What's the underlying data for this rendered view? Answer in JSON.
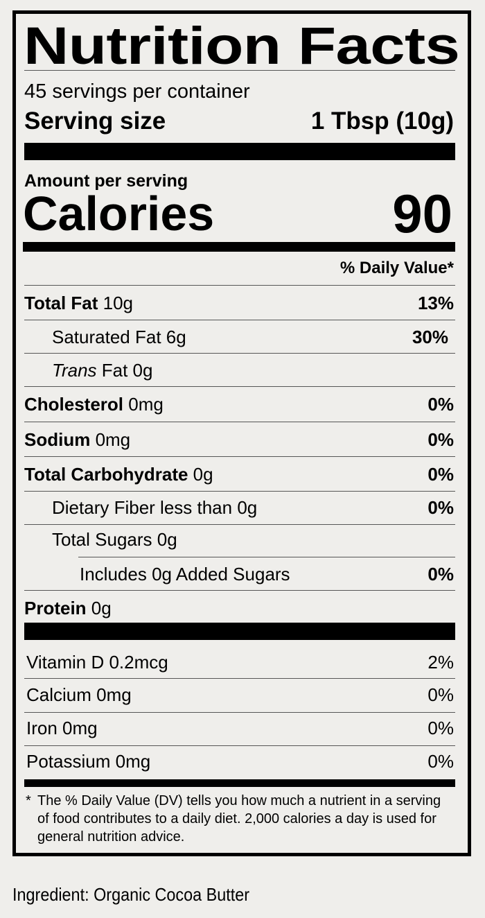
{
  "title": "Nutrition Facts",
  "servings": "45 servings per container",
  "serving_size_label": "Serving size",
  "serving_size_value": "1 Tbsp (10g)",
  "amount_per_serving": "Amount per serving",
  "calories_label": "Calories",
  "calories_value": "90",
  "dv_header": "% Daily Value*",
  "nutrients": [
    {
      "name": "Total Fat",
      "amount": " 10g",
      "dv": "13%"
    },
    {
      "name": "Saturated Fat 6g",
      "dv": "30%"
    },
    {
      "name_italic": "Trans",
      "name": " Fat 0g",
      "dv": ""
    },
    {
      "name": "Cholesterol",
      "amount": " 0mg",
      "dv": "0%"
    },
    {
      "name": "Sodium",
      "amount": " 0mg",
      "dv": "0%"
    },
    {
      "name": "Total Carbohydrate",
      "amount": " 0g",
      "dv": "0%"
    },
    {
      "name": "Dietary Fiber less than 0g",
      "dv": "0%"
    },
    {
      "name": "Total Sugars 0g",
      "dv": ""
    },
    {
      "name": "Includes 0g Added Sugars",
      "dv": "0%"
    },
    {
      "name": "Protein",
      "amount": " 0g",
      "dv": ""
    }
  ],
  "vitamins": [
    {
      "name": "Vitamin D 0.2mcg",
      "dv": "2%"
    },
    {
      "name": "Calcium 0mg",
      "dv": "0%"
    },
    {
      "name": "Iron 0mg",
      "dv": "0%"
    },
    {
      "name": "Potassium 0mg",
      "dv": "0%"
    }
  ],
  "footnote_star": "*",
  "footnote": "The % Daily Value (DV) tells you how much a nutrient in a serving of food contributes to a daily diet. 2,000 calories a day is used for general nutrition advice.",
  "ingredient": "Ingredient: Organic Cocoa Butter"
}
